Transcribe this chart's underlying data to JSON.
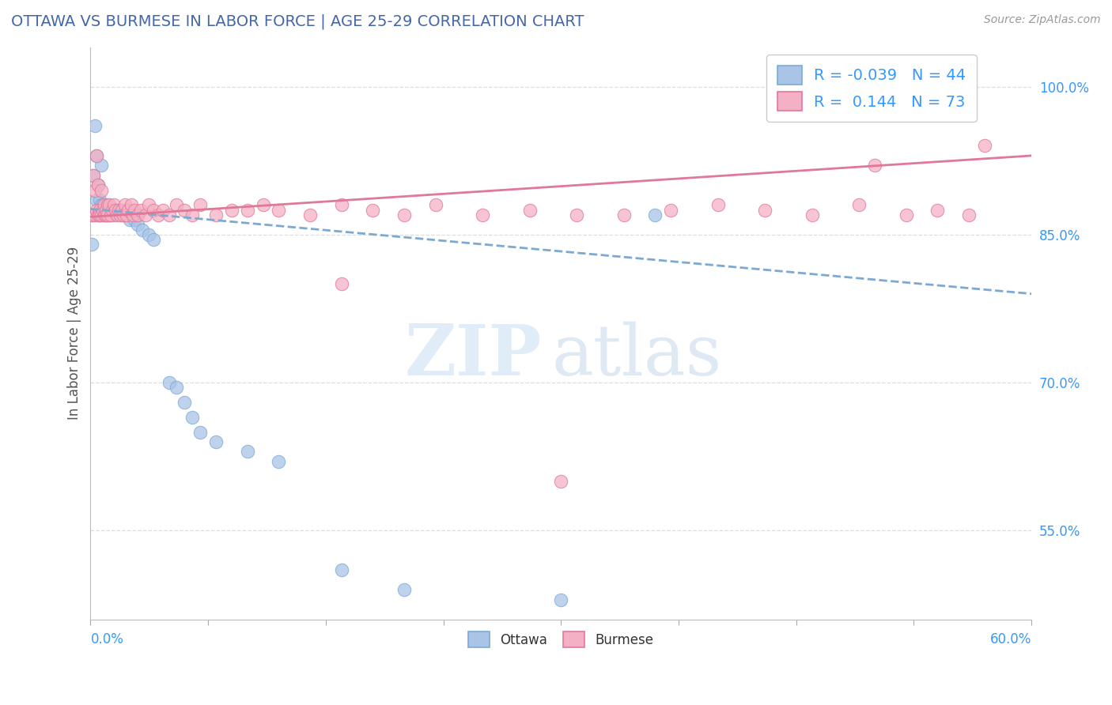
{
  "title": "OTTAWA VS BURMESE IN LABOR FORCE | AGE 25-29 CORRELATION CHART",
  "source": "Source: ZipAtlas.com",
  "ylabel": "In Labor Force | Age 25-29",
  "x_min": 0.0,
  "x_max": 0.6,
  "y_min": 0.46,
  "y_max": 1.04,
  "y_ticks": [
    0.55,
    0.7,
    0.85,
    1.0
  ],
  "y_tick_labels": [
    "55.0%",
    "70.0%",
    "85.0%",
    "100.0%"
  ],
  "ottawa_R": -0.039,
  "ottawa_N": 44,
  "burmese_R": 0.144,
  "burmese_N": 73,
  "ottawa_color": "#aac4e8",
  "burmese_color": "#f4b0c4",
  "ottawa_edge_color": "#7aaad4",
  "burmese_edge_color": "#e07898",
  "ottawa_line_color": "#7aaad4",
  "burmese_line_color": "#e07898",
  "title_color": "#4466aa",
  "axis_label_color": "#3399ff",
  "ylabel_color": "#555555",
  "source_color": "#999999",
  "grid_color": "#dddddd",
  "watermark_zip_color": "#c8dff5",
  "watermark_atlas_color": "#b8d0e8",
  "ottawa_x": [
    0.001,
    0.001,
    0.002,
    0.002,
    0.003,
    0.004,
    0.004,
    0.005,
    0.005,
    0.006,
    0.006,
    0.007,
    0.007,
    0.008,
    0.008,
    0.009,
    0.01,
    0.01,
    0.011,
    0.012,
    0.013,
    0.015,
    0.016,
    0.018,
    0.02,
    0.022,
    0.025,
    0.028,
    0.03,
    0.033,
    0.037,
    0.04,
    0.05,
    0.055,
    0.06,
    0.065,
    0.07,
    0.08,
    0.1,
    0.12,
    0.16,
    0.2,
    0.3,
    0.36
  ],
  "ottawa_y": [
    0.84,
    0.87,
    0.87,
    0.91,
    0.96,
    0.885,
    0.93,
    0.87,
    0.9,
    0.87,
    0.885,
    0.88,
    0.92,
    0.87,
    0.88,
    0.87,
    0.87,
    0.875,
    0.87,
    0.87,
    0.87,
    0.87,
    0.875,
    0.875,
    0.87,
    0.87,
    0.865,
    0.865,
    0.86,
    0.855,
    0.85,
    0.845,
    0.7,
    0.695,
    0.68,
    0.665,
    0.65,
    0.64,
    0.63,
    0.62,
    0.51,
    0.49,
    0.48,
    0.87
  ],
  "burmese_x": [
    0.001,
    0.002,
    0.003,
    0.003,
    0.004,
    0.004,
    0.005,
    0.005,
    0.006,
    0.006,
    0.007,
    0.007,
    0.008,
    0.009,
    0.009,
    0.01,
    0.01,
    0.011,
    0.011,
    0.012,
    0.013,
    0.014,
    0.015,
    0.016,
    0.017,
    0.018,
    0.019,
    0.02,
    0.021,
    0.022,
    0.023,
    0.024,
    0.026,
    0.027,
    0.028,
    0.03,
    0.032,
    0.035,
    0.037,
    0.04,
    0.043,
    0.046,
    0.05,
    0.055,
    0.06,
    0.065,
    0.07,
    0.08,
    0.09,
    0.1,
    0.11,
    0.12,
    0.14,
    0.16,
    0.18,
    0.2,
    0.22,
    0.25,
    0.28,
    0.31,
    0.34,
    0.37,
    0.4,
    0.43,
    0.46,
    0.49,
    0.52,
    0.54,
    0.56,
    0.3,
    0.16,
    0.5,
    0.57
  ],
  "burmese_y": [
    0.87,
    0.91,
    0.87,
    0.895,
    0.93,
    0.875,
    0.9,
    0.87,
    0.875,
    0.87,
    0.895,
    0.87,
    0.875,
    0.87,
    0.88,
    0.875,
    0.87,
    0.88,
    0.87,
    0.88,
    0.87,
    0.875,
    0.88,
    0.875,
    0.87,
    0.875,
    0.87,
    0.875,
    0.87,
    0.88,
    0.87,
    0.875,
    0.88,
    0.87,
    0.875,
    0.87,
    0.875,
    0.87,
    0.88,
    0.875,
    0.87,
    0.875,
    0.87,
    0.88,
    0.875,
    0.87,
    0.88,
    0.87,
    0.875,
    0.875,
    0.88,
    0.875,
    0.87,
    0.88,
    0.875,
    0.87,
    0.88,
    0.87,
    0.875,
    0.87,
    0.87,
    0.875,
    0.88,
    0.875,
    0.87,
    0.88,
    0.87,
    0.875,
    0.87,
    0.6,
    0.8,
    0.92,
    0.94
  ]
}
